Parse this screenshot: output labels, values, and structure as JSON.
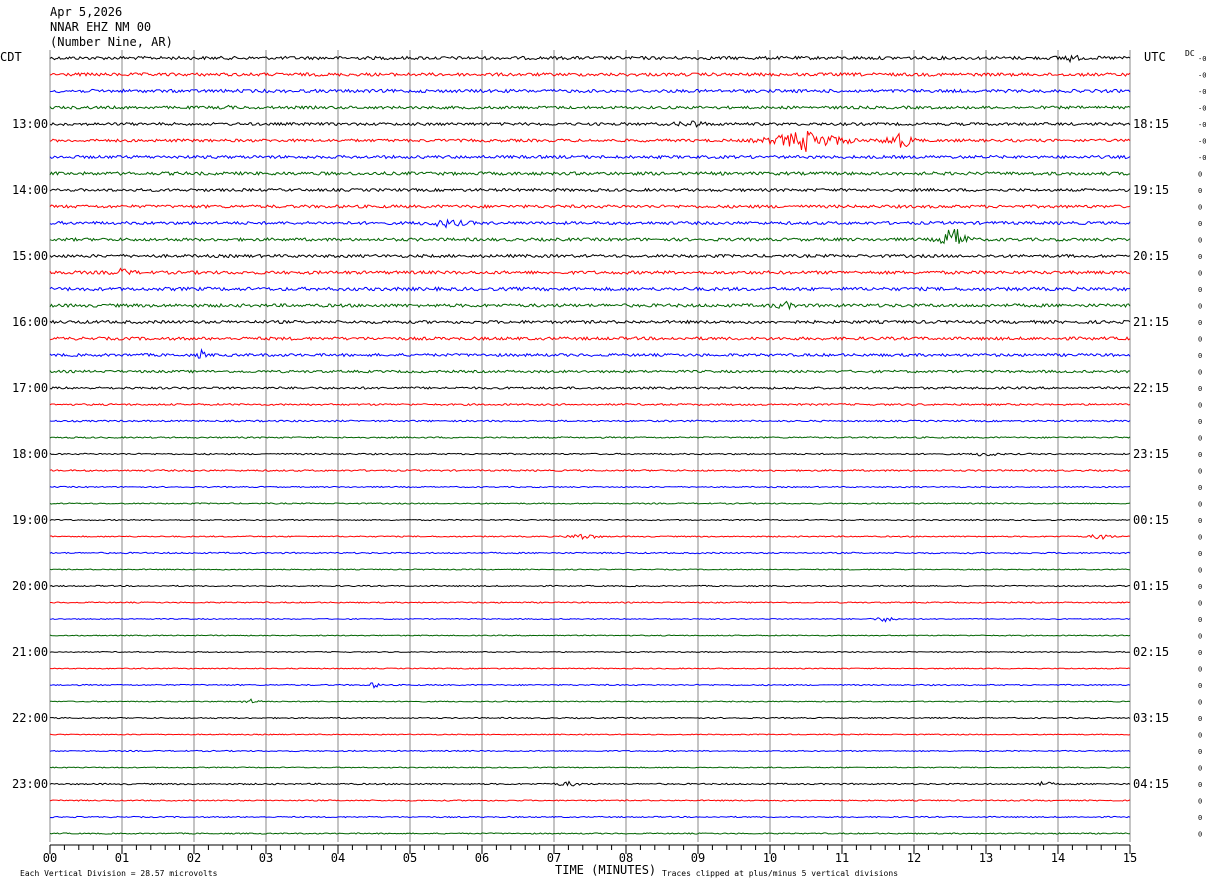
{
  "header": {
    "date": "Apr 5,2026",
    "station": "NNAR EHZ NM 00",
    "location": "(Number Nine, AR)"
  },
  "left_zone": "CDT",
  "right_zone": "UTC",
  "dc_label": "DC",
  "footer": {
    "division_note": "Each Vertical Division =   28.57 microvolts",
    "xlabel": "TIME (MINUTES)",
    "clip_note": "Traces clipped at plus/minus 5 vertical divisions"
  },
  "chart_data": {
    "type": "line",
    "title": "",
    "xlabel": "TIME (MINUTES)",
    "ylabel": "",
    "xlim": [
      0,
      15
    ],
    "x_ticks": [
      "00",
      "01",
      "02",
      "03",
      "04",
      "05",
      "06",
      "07",
      "08",
      "09",
      "10",
      "11",
      "12",
      "13",
      "14",
      "15"
    ],
    "grid": true,
    "rows": 48,
    "row_minutes": 15,
    "trace_colors": [
      "#000000",
      "#ff0000",
      "#0000ff",
      "#006400"
    ],
    "left_hour_labels": [
      "13:00",
      "14:00",
      "15:00",
      "16:00",
      "17:00",
      "18:00",
      "19:00",
      "20:00",
      "21:00",
      "22:00",
      "23:00"
    ],
    "right_hour_labels": [
      "18:15",
      "19:15",
      "20:15",
      "21:15",
      "22:15",
      "23:15",
      "00:15",
      "01:15",
      "02:15",
      "03:15",
      "04:15"
    ],
    "dc_offsets": [
      "-0",
      "-0",
      "-0",
      "-0",
      "-0",
      "-0",
      "-0",
      "0",
      "0",
      "0",
      "0",
      "0",
      "0",
      "0",
      "0",
      "0",
      "0",
      "0",
      "0",
      "0",
      "0",
      "0",
      "0",
      "0",
      "0",
      "0",
      "0",
      "0",
      "0",
      "0",
      "0",
      "0",
      "0",
      "0",
      "0",
      "0",
      "0",
      "0",
      "0",
      "0",
      "0",
      "0",
      "0",
      "0",
      "0",
      "0",
      "0",
      "0"
    ],
    "noise_levels": [
      1.6,
      1.6,
      1.6,
      1.4,
      1.4,
      1.4,
      1.5,
      1.6,
      1.4,
      1.5,
      1.5,
      1.5,
      1.5,
      1.6,
      1.7,
      1.6,
      1.5,
      1.5,
      1.4,
      1.2,
      1.1,
      0.9,
      0.8,
      0.7,
      0.7,
      0.8,
      0.6,
      0.6,
      0.6,
      0.6,
      0.7,
      0.5,
      0.6,
      0.6,
      0.5,
      0.5,
      0.5,
      0.5,
      0.6,
      0.5,
      0.6,
      0.5,
      0.6,
      0.5,
      0.7,
      0.6,
      0.6,
      0.6
    ],
    "events": [
      {
        "row": 0,
        "minute": 14.15,
        "amplitude": 3.0,
        "duration": 0.3
      },
      {
        "row": 3,
        "minute": 2.45,
        "amplitude": 3.5,
        "duration": 0.1
      },
      {
        "row": 4,
        "minute": 8.9,
        "amplitude": 3.0,
        "duration": 0.4
      },
      {
        "row": 5,
        "minute": 10.5,
        "amplitude": 10.0,
        "duration": 1.0
      },
      {
        "row": 5,
        "minute": 11.8,
        "amplitude": 8.0,
        "duration": 0.4
      },
      {
        "row": 10,
        "minute": 5.5,
        "amplitude": 3.0,
        "duration": 0.6
      },
      {
        "row": 11,
        "minute": 12.55,
        "amplitude": 13.0,
        "duration": 0.35
      },
      {
        "row": 13,
        "minute": 1.0,
        "amplitude": 3.0,
        "duration": 0.3
      },
      {
        "row": 15,
        "minute": 10.2,
        "amplitude": 3.0,
        "duration": 0.3
      },
      {
        "row": 18,
        "minute": 2.1,
        "amplitude": 5.0,
        "duration": 0.1
      },
      {
        "row": 24,
        "minute": 13.0,
        "amplitude": 2.5,
        "duration": 0.3
      },
      {
        "row": 29,
        "minute": 7.4,
        "amplitude": 3.0,
        "duration": 0.4
      },
      {
        "row": 29,
        "minute": 14.6,
        "amplitude": 3.0,
        "duration": 0.3
      },
      {
        "row": 34,
        "minute": 11.6,
        "amplitude": 2.5,
        "duration": 0.3
      },
      {
        "row": 38,
        "minute": 4.5,
        "amplitude": 2.5,
        "duration": 0.2
      },
      {
        "row": 39,
        "minute": 2.8,
        "amplitude": 2.0,
        "duration": 0.3
      },
      {
        "row": 44,
        "minute": 7.2,
        "amplitude": 2.0,
        "duration": 0.4
      },
      {
        "row": 44,
        "minute": 13.8,
        "amplitude": 2.0,
        "duration": 0.3
      }
    ]
  }
}
